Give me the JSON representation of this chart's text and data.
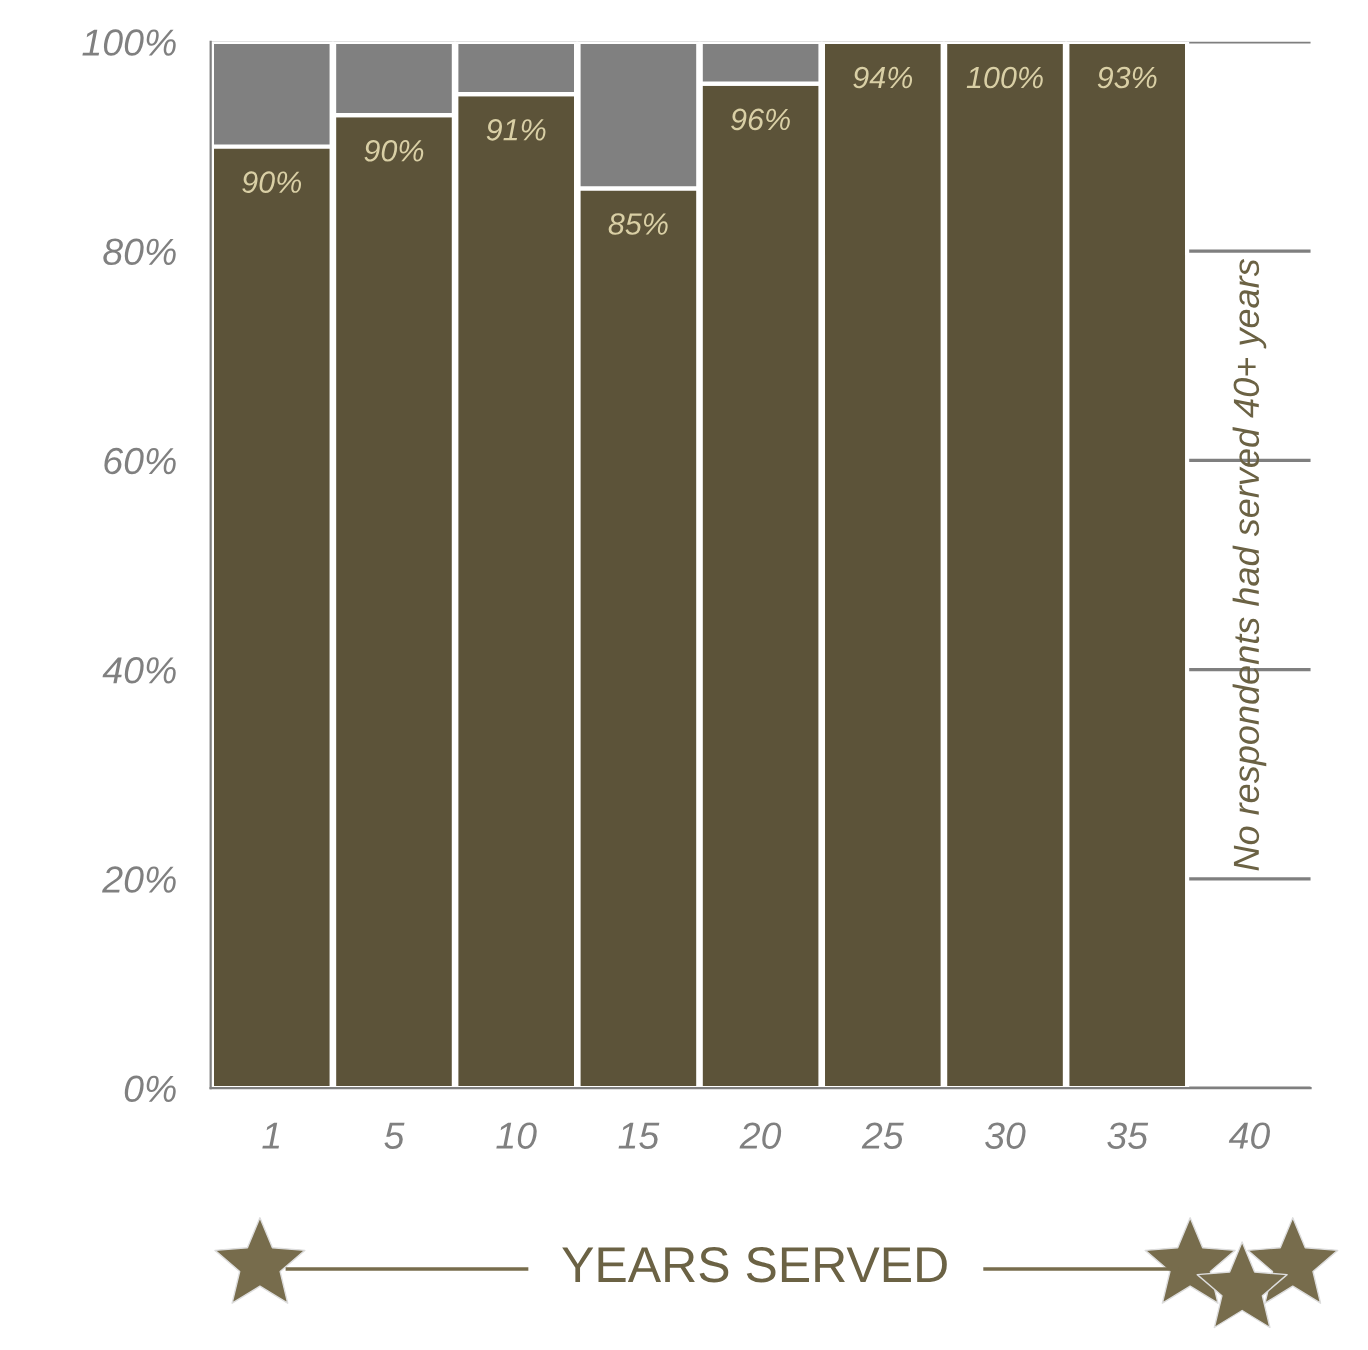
{
  "chart_data": {
    "type": "bar",
    "stacked": true,
    "categories": [
      "1",
      "5",
      "10",
      "15",
      "20",
      "25",
      "30",
      "35",
      "40"
    ],
    "series": [
      {
        "color": "#5c5339",
        "values": [
          90,
          93,
          95,
          86,
          96,
          100,
          100,
          100,
          null
        ]
      },
      {
        "color": "#808080",
        "values": [
          10,
          7,
          5,
          14,
          4,
          0,
          0,
          0,
          null
        ]
      }
    ],
    "ylim": [
      0,
      100
    ],
    "yticks": [
      {
        "value": 0,
        "label": "0%"
      },
      {
        "value": 20,
        "label": "20%"
      },
      {
        "value": 40,
        "label": "40%"
      },
      {
        "value": 60,
        "label": "60%"
      },
      {
        "value": 80,
        "label": "80%"
      },
      {
        "value": 100,
        "label": "100%"
      }
    ],
    "grid": "y",
    "xlabel": "YEARS SERVED",
    "annotations": [
      "90%",
      "90%",
      "91%",
      "85%",
      "96%",
      "94%",
      "100%",
      "93%",
      "No respondents had served 40+ years"
    ]
  }
}
